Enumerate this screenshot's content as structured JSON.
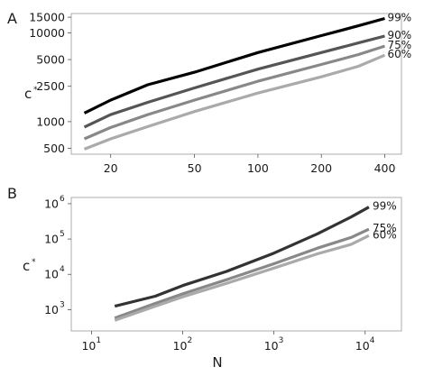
{
  "chart_data": [
    {
      "panel": "A",
      "type": "line",
      "xscale": "log",
      "yscale": "log",
      "xlabel": "",
      "ylabel": "c",
      "ylabel_superscript": "*",
      "xlim": [
        13,
        480
      ],
      "ylim": [
        430,
        16500
      ],
      "xticks": [
        20,
        50,
        100,
        200,
        400
      ],
      "yticks": [
        500,
        1000,
        2500,
        5000,
        10000,
        15000
      ],
      "grid": false,
      "series": [
        {
          "name": "99%",
          "color": "#000000",
          "x": [
            15,
            20,
            30,
            50,
            100,
            200,
            300,
            400
          ],
          "y": [
            1250,
            1750,
            2600,
            3600,
            6000,
            9300,
            12000,
            14500
          ]
        },
        {
          "name": "90%",
          "color": "#555555",
          "x": [
            15,
            20,
            30,
            50,
            100,
            200,
            300,
            400
          ],
          "y": [
            870,
            1200,
            1650,
            2400,
            3900,
            6000,
            7700,
            9200
          ]
        },
        {
          "name": "75%",
          "color": "#888888",
          "x": [
            15,
            20,
            30,
            50,
            100,
            200,
            300,
            400
          ],
          "y": [
            640,
            860,
            1200,
            1750,
            2850,
            4400,
            5700,
            7100
          ]
        },
        {
          "name": "60%",
          "color": "#aaaaaa",
          "x": [
            15,
            20,
            30,
            50,
            100,
            200,
            300,
            400
          ],
          "y": [
            490,
            640,
            880,
            1300,
            2100,
            3200,
            4200,
            5600
          ]
        }
      ]
    },
    {
      "panel": "B",
      "type": "line",
      "xscale": "log",
      "yscale": "log",
      "xlabel": "N",
      "ylabel": "c",
      "ylabel_superscript": "*",
      "xlim": [
        6,
        25000
      ],
      "ylim": [
        250,
        1500000
      ],
      "xticks": [
        10,
        100,
        1000,
        10000
      ],
      "yticks": [
        1000,
        10000,
        100000,
        1000000
      ],
      "xtick_labels": [
        {
          "base": "10",
          "exp": "1"
        },
        {
          "base": "10",
          "exp": "2"
        },
        {
          "base": "10",
          "exp": "3"
        },
        {
          "base": "10",
          "exp": "4"
        }
      ],
      "ytick_labels": [
        {
          "base": "10",
          "exp": "3"
        },
        {
          "base": "10",
          "exp": "4"
        },
        {
          "base": "10",
          "exp": "5"
        },
        {
          "base": "10",
          "exp": "6"
        }
      ],
      "grid": false,
      "series": [
        {
          "name": "99%",
          "color": "#333333",
          "x": [
            18,
            50,
            100,
            300,
            1000,
            3000,
            7000,
            11000
          ],
          "y": [
            1250,
            2400,
            4800,
            12000,
            40000,
            140000,
            420000,
            800000
          ]
        },
        {
          "name": "75%",
          "color": "#888888",
          "x": [
            18,
            50,
            100,
            300,
            1000,
            3000,
            7000,
            11000
          ],
          "y": [
            580,
            1500,
            2800,
            7000,
            20000,
            55000,
            110000,
            190000
          ]
        },
        {
          "name": "60%",
          "color": "#aaaaaa",
          "x": [
            18,
            50,
            100,
            300,
            1000,
            3000,
            7000,
            11000
          ],
          "y": [
            500,
            1250,
            2300,
            5500,
            15000,
            38000,
            70000,
            125000
          ]
        }
      ]
    }
  ]
}
